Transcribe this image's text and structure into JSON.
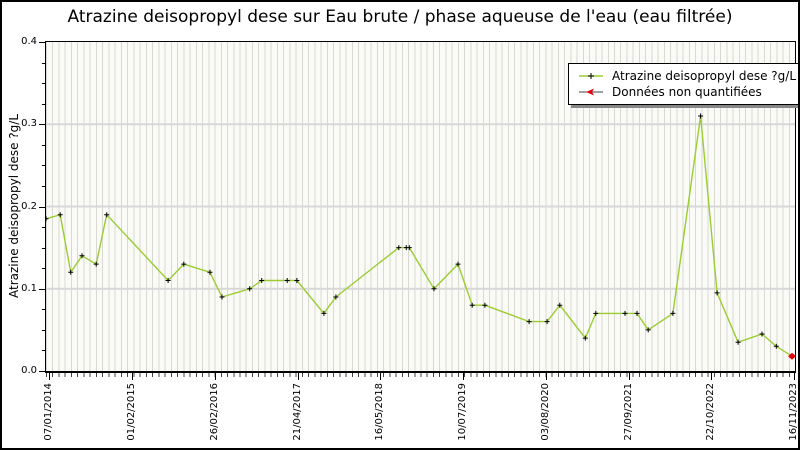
{
  "title": "Atrazine deisopropyl dese sur Eau brute / phase aqueuse de l'eau (eau filtrée)",
  "y_axis": {
    "label": "Atrazine deisopropyl dese ?g/L",
    "tick_labels": [
      "0.0",
      "0.1",
      "0.2",
      "0.3",
      "0.4"
    ],
    "tick_values": [
      0,
      0.1,
      0.2,
      0.3,
      0.4
    ],
    "minor_step": 0.025,
    "min": 0,
    "max": 0.4
  },
  "x_axis": {
    "tick_labels": [
      "07/01/2014",
      "01/02/2015",
      "26/02/2016",
      "21/04/2017",
      "16/05/2018",
      "10/07/2019",
      "03/08/2020",
      "27/09/2021",
      "22/10/2022",
      "16/11/2023"
    ],
    "tick_positions": [
      0.004,
      0.115,
      0.225,
      0.336,
      0.446,
      0.557,
      0.667,
      0.778,
      0.888,
      0.999
    ]
  },
  "legend": {
    "items": [
      {
        "label": "Atrazine deisopropyl dese ?g/L",
        "marker": "plus-on-green-line",
        "color": "#9acd32"
      },
      {
        "label": "Données non quantifiées",
        "marker": "red-arrow-on-line",
        "color": "#e8000b"
      }
    ]
  },
  "colors": {
    "line": "#9acd32",
    "marker": "#000000",
    "non_quantified": "#e8000b",
    "plot_bg": "#fafaf7",
    "grid_vertical": "#d9d9d1",
    "grid_horizontal": "#d8d8d8",
    "axis": "#000000"
  },
  "chart_data": {
    "type": "line",
    "title": "Atrazine deisopropyl dese sur Eau brute / phase aqueuse de l'eau (eau filtrée)",
    "xlabel": "",
    "ylabel": "Atrazine deisopropyl dese ?g/L",
    "ylim": [
      0,
      0.4
    ],
    "grid": true,
    "legend_position": "upper right",
    "x_encoding": "fraction of x-axis width (dates run 07/01/2014 to 16/11/2023)",
    "x_tick_labels": [
      "07/01/2014",
      "01/02/2015",
      "26/02/2016",
      "21/04/2017",
      "16/05/2018",
      "10/07/2019",
      "03/08/2020",
      "27/09/2021",
      "22/10/2022",
      "16/11/2023"
    ],
    "series": [
      {
        "name": "Atrazine deisopropyl dese ?g/L",
        "points": [
          [
            0.0,
            0.185
          ],
          [
            0.019,
            0.19
          ],
          [
            0.033,
            0.12
          ],
          [
            0.048,
            0.14
          ],
          [
            0.067,
            0.13
          ],
          [
            0.081,
            0.19
          ],
          [
            0.163,
            0.11
          ],
          [
            0.184,
            0.13
          ],
          [
            0.219,
            0.12
          ],
          [
            0.235,
            0.09
          ],
          [
            0.272,
            0.1
          ],
          [
            0.288,
            0.11
          ],
          [
            0.322,
            0.11
          ],
          [
            0.335,
            0.11
          ],
          [
            0.371,
            0.07
          ],
          [
            0.387,
            0.09
          ],
          [
            0.471,
            0.15
          ],
          [
            0.481,
            0.15
          ],
          [
            0.485,
            0.15
          ],
          [
            0.518,
            0.1
          ],
          [
            0.55,
            0.13
          ],
          [
            0.569,
            0.08
          ],
          [
            0.586,
            0.08
          ],
          [
            0.645,
            0.06
          ],
          [
            0.669,
            0.06
          ],
          [
            0.686,
            0.08
          ],
          [
            0.72,
            0.04
          ],
          [
            0.734,
            0.07
          ],
          [
            0.773,
            0.07
          ],
          [
            0.789,
            0.07
          ],
          [
            0.804,
            0.05
          ],
          [
            0.837,
            0.07
          ],
          [
            0.874,
            0.31
          ],
          [
            0.896,
            0.095
          ],
          [
            0.924,
            0.035
          ],
          [
            0.956,
            0.045
          ],
          [
            0.975,
            0.03
          ]
        ]
      }
    ],
    "non_quantified": [
      [
        0.996,
        0.018
      ]
    ]
  }
}
